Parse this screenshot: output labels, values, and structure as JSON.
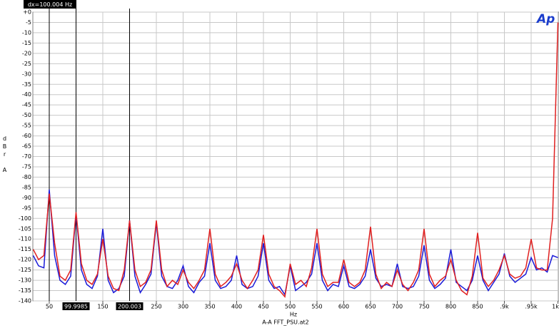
{
  "chart_data": {
    "type": "line",
    "annotation": "dx=100.004 Hz",
    "logo": "Ap",
    "ylabel": "dBr A",
    "xlabel": "Hz",
    "footer": "A-A FFT_PSU.at2",
    "xlim": [
      20,
      1000
    ],
    "ylim": [
      -140,
      0
    ],
    "grid": true,
    "yticks": [
      {
        "value": 0,
        "label": "+0"
      },
      -5,
      -10,
      -15,
      -20,
      -25,
      -30,
      -35,
      -40,
      -45,
      -50,
      -55,
      -60,
      -65,
      -70,
      -75,
      -80,
      -85,
      -90,
      -95,
      -100,
      -105,
      -110,
      -115,
      -120,
      -125,
      -130,
      -135,
      -140
    ],
    "xticks": [
      50,
      150,
      250,
      300,
      350,
      400,
      450,
      500,
      550,
      600,
      650,
      700,
      750,
      800,
      850,
      {
        "value": 900,
        "label": ".9k"
      },
      {
        "value": 950,
        "label": ".95k"
      },
      {
        "value": 1000,
        "label": "1k"
      }
    ],
    "cursors": [
      99.9985,
      200.003
    ],
    "reference_line": 50,
    "x": [
      20,
      30,
      40,
      50,
      60,
      70,
      80,
      90,
      100,
      110,
      120,
      130,
      140,
      150,
      160,
      170,
      180,
      190,
      200,
      210,
      220,
      230,
      240,
      250,
      260,
      270,
      280,
      290,
      300,
      310,
      320,
      330,
      340,
      350,
      360,
      370,
      380,
      390,
      400,
      410,
      420,
      430,
      440,
      450,
      460,
      470,
      480,
      490,
      500,
      510,
      520,
      530,
      540,
      550,
      560,
      570,
      580,
      590,
      600,
      610,
      620,
      630,
      640,
      650,
      660,
      670,
      680,
      690,
      700,
      710,
      720,
      730,
      740,
      750,
      760,
      770,
      780,
      790,
      800,
      810,
      820,
      830,
      840,
      850,
      860,
      870,
      880,
      890,
      900,
      910,
      920,
      930,
      940,
      950,
      960,
      970,
      980,
      990,
      1000
    ],
    "series": [
      {
        "color": "#1a1ad8",
        "values": [
          -118,
          -123,
          -124,
          -86,
          -118,
          -130,
          -132,
          -128,
          -98,
          -125,
          -132,
          -134,
          -128,
          -105,
          -130,
          -136,
          -134,
          -128,
          -101,
          -128,
          -136,
          -132,
          -127,
          -102,
          -128,
          -133,
          -134,
          -130,
          -123,
          -133,
          -136,
          -131,
          -128,
          -112,
          -130,
          -134,
          -133,
          -130,
          -118,
          -132,
          -134,
          -133,
          -128,
          -112,
          -130,
          -134,
          -133,
          -137,
          -123,
          -135,
          -133,
          -131,
          -127,
          -112,
          -130,
          -135,
          -132,
          -133,
          -123,
          -133,
          -134,
          -132,
          -128,
          -115,
          -129,
          -133,
          -132,
          -133,
          -122,
          -133,
          -134,
          -133,
          -128,
          -113,
          -130,
          -134,
          -132,
          -129,
          -115,
          -131,
          -133,
          -135,
          -130,
          -118,
          -130,
          -135,
          -131,
          -127,
          -117,
          -128,
          -131,
          -129,
          -127,
          -119,
          -125,
          -124,
          -126,
          -118,
          -119
        ]
      },
      {
        "color": "#e02020",
        "values": [
          -115,
          -120,
          -118,
          -88,
          -112,
          -128,
          -130,
          -125,
          -97,
          -122,
          -130,
          -132,
          -127,
          -110,
          -128,
          -134,
          -135,
          -125,
          -101,
          -125,
          -133,
          -131,
          -125,
          -101,
          -125,
          -133,
          -130,
          -132,
          -125,
          -131,
          -134,
          -130,
          -125,
          -105,
          -127,
          -133,
          -131,
          -128,
          -122,
          -130,
          -134,
          -130,
          -125,
          -108,
          -127,
          -133,
          -135,
          -138,
          -122,
          -132,
          -130,
          -133,
          -124,
          -105,
          -127,
          -133,
          -131,
          -131,
          -120,
          -131,
          -133,
          -131,
          -125,
          -104,
          -127,
          -134,
          -131,
          -133,
          -125,
          -132,
          -135,
          -131,
          -125,
          -105,
          -127,
          -133,
          -130,
          -128,
          -120,
          -130,
          -135,
          -137,
          -128,
          -107,
          -129,
          -133,
          -130,
          -125,
          -118,
          -127,
          -129,
          -128,
          -124,
          -110,
          -124,
          -125,
          -125,
          -100,
          -5
        ]
      }
    ]
  }
}
